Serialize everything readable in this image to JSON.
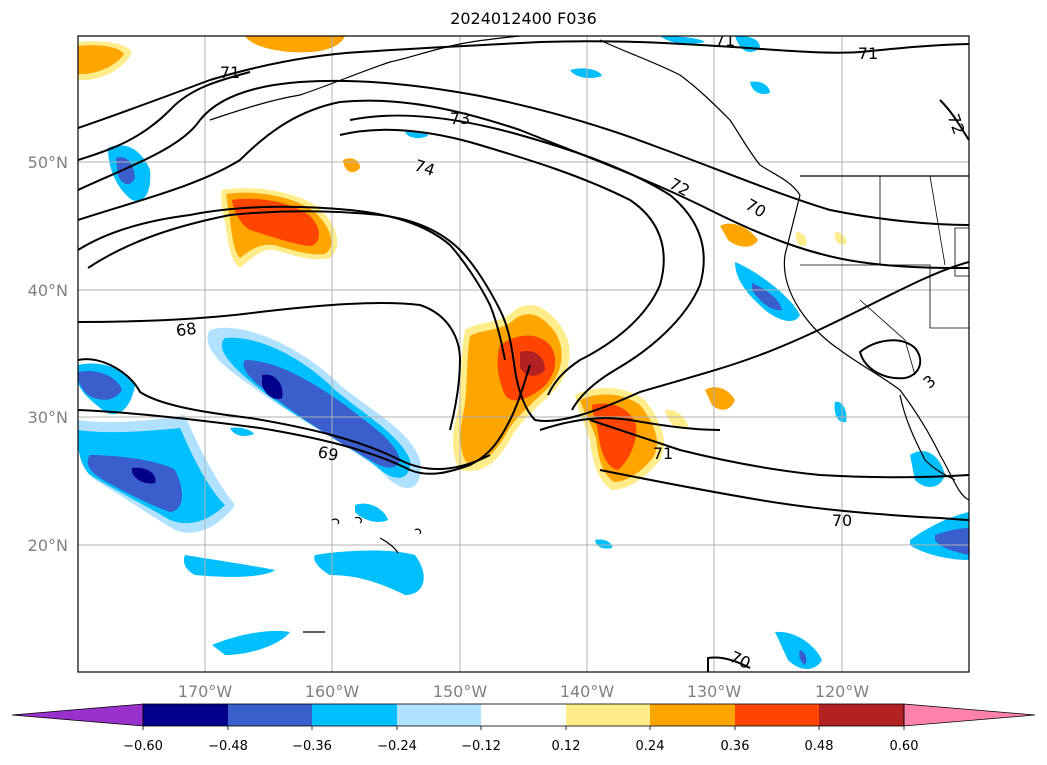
{
  "title": "2024012400 F036",
  "map": {
    "projection": "PlateCarree",
    "lon_range": [
      -180,
      -110
    ],
    "lat_range": [
      10,
      60
    ],
    "grid": true,
    "coastlines": true,
    "lat_labels": [
      "50°N",
      "40°N",
      "30°N",
      "20°N"
    ],
    "lon_labels": [
      "170°W",
      "160°W",
      "150°W",
      "140°W",
      "130°W",
      "120°W"
    ]
  },
  "contours": {
    "color": "#000000",
    "labels": [
      "71",
      "71",
      "71",
      "73",
      "74",
      "72",
      "70",
      "72",
      "68",
      "69",
      "71",
      "70",
      "70",
      "3"
    ]
  },
  "colorbar": {
    "colors": [
      "#9932cc",
      "#00008b",
      "#3a5fcd",
      "#00bfff",
      "#b0e2ff",
      "#ffffff",
      "#ffec8b",
      "#ffa500",
      "#ff4500",
      "#b22222",
      "#ff82ab"
    ],
    "ticks": [
      "−0.60",
      "−0.48",
      "−0.36",
      "−0.24",
      "−0.12",
      "0.12",
      "0.24",
      "0.36",
      "0.48",
      "0.60"
    ],
    "extend": "both"
  }
}
